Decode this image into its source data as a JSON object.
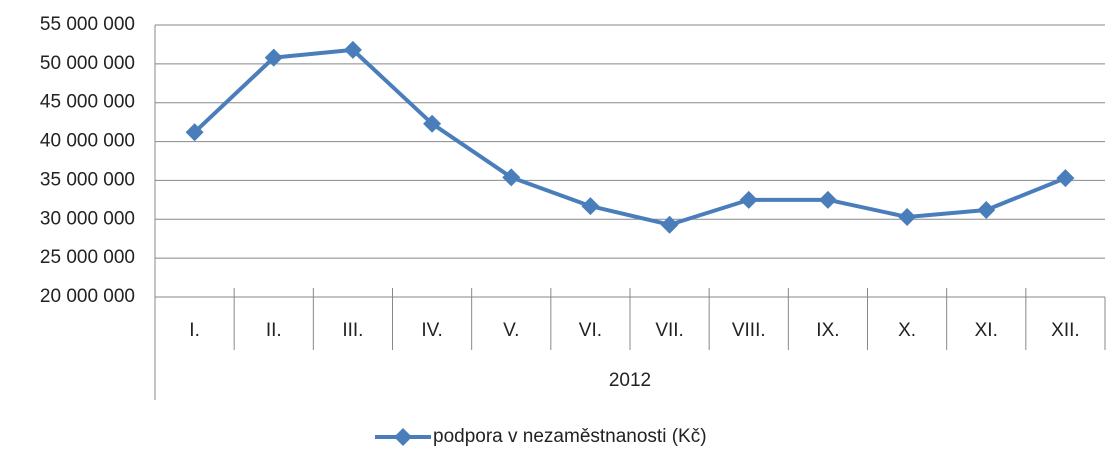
{
  "chart_data": {
    "type": "line",
    "categories": [
      "I.",
      "II.",
      "III.",
      "IV.",
      "V.",
      "VI.",
      "VII.",
      "VIII.",
      "IX.",
      "X.",
      "XI.",
      "XII."
    ],
    "category_group": "2012",
    "series": [
      {
        "name": "podpora v nezaměstnanosti (Kč)",
        "color": "#4a7ebb",
        "values": [
          41200000,
          50800000,
          51800000,
          42300000,
          35400000,
          31700000,
          29300000,
          32500000,
          32500000,
          30300000,
          31200000,
          35300000
        ]
      }
    ],
    "ylim": [
      20000000,
      55000000
    ],
    "yticks": [
      {
        "value": 20000000,
        "label": "20 000 000"
      },
      {
        "value": 25000000,
        "label": "25 000 000"
      },
      {
        "value": 30000000,
        "label": "30 000 000"
      },
      {
        "value": 35000000,
        "label": "35 000 000"
      },
      {
        "value": 40000000,
        "label": "40 000 000"
      },
      {
        "value": 45000000,
        "label": "45 000 000"
      },
      {
        "value": 50000000,
        "label": "50 000 000"
      },
      {
        "value": 55000000,
        "label": "55 000 000"
      }
    ],
    "grid": true,
    "legend": "bottom"
  }
}
